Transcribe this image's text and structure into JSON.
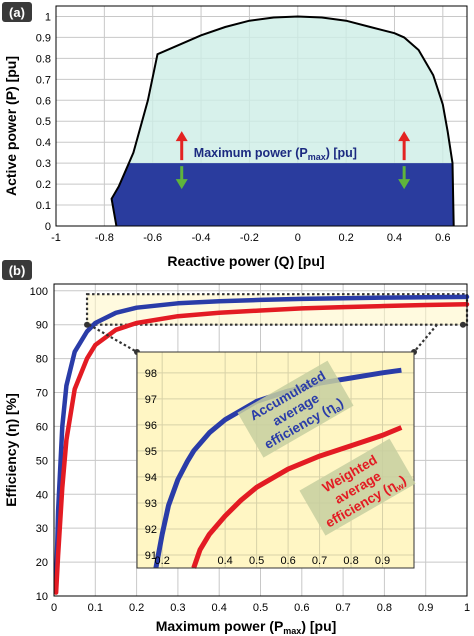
{
  "colors": {
    "fill_light": "#cdeee6",
    "fill_dark": "#2a3c9e",
    "grid": "#c8c8c8",
    "arrow_up": "#e32322",
    "arrow_down": "#5fb43c",
    "inset_bg": "#fff6c4",
    "accumulated": "#2a3ca8",
    "weighted": "#e31b23",
    "label_bg": "#c7cfa0",
    "panel_label_bg": "#3a3a3a"
  },
  "chart_data": [
    {
      "type": "area",
      "panel_label": "(a)",
      "xlabel": "Reactive power (Q) [pu]",
      "ylabel": "Active power (P) [pu]",
      "xlim": [
        -1,
        0.7
      ],
      "ylim": [
        0,
        1.05
      ],
      "xticks": [
        -1,
        -0.8,
        -0.6,
        -0.4,
        -0.2,
        0,
        0.2,
        0.4,
        0.6
      ],
      "xtick_labels": [
        "-1",
        "-0.8",
        "-0.6",
        "-0.4",
        "-0.2",
        "0",
        "0.2",
        "0.4",
        "0.6"
      ],
      "yticks": [
        0,
        0.1,
        0.2,
        0.3,
        0.4,
        0.5,
        0.6,
        0.7,
        0.8,
        0.9,
        1
      ],
      "ytick_labels": [
        "0",
        "0.1",
        "0.2",
        "0.3",
        "0.4",
        "0.5",
        "0.6",
        "0.7",
        "0.8",
        "0.9",
        "1"
      ],
      "grid": true,
      "capability_boundary": {
        "x": [
          -0.75,
          -0.77,
          -0.74,
          -0.68,
          -0.62,
          -0.58,
          -0.5,
          -0.4,
          -0.3,
          -0.2,
          -0.1,
          0,
          0.1,
          0.2,
          0.3,
          0.4,
          0.44,
          0.5,
          0.56,
          0.6,
          0.62,
          0.64,
          0.645
        ],
        "y": [
          0,
          0.13,
          0.19,
          0.35,
          0.6,
          0.82,
          0.86,
          0.91,
          0.95,
          0.98,
          0.995,
          1.0,
          0.995,
          0.98,
          0.95,
          0.92,
          0.9,
          0.84,
          0.72,
          0.58,
          0.45,
          0.3,
          0
        ]
      },
      "pmax": 0.3,
      "annotation": {
        "text": "Maximum power (P",
        "sub": "max",
        "suffix": ") [pu]",
        "arrow_x": [
          -0.48,
          0.44
        ]
      }
    },
    {
      "type": "line",
      "panel_label": "(b)",
      "xlabel": "Maximum power (P",
      "xlabel_sub": "max",
      "xlabel_suffix": ") [pu]",
      "ylabel": "Efficiency (η) [%]",
      "xlim": [
        0,
        1
      ],
      "ylim": [
        10,
        102
      ],
      "xticks": [
        0,
        0.1,
        0.2,
        0.3,
        0.4,
        0.5,
        0.6,
        0.7,
        0.8,
        0.9,
        1
      ],
      "xtick_labels": [
        "0",
        "0.1",
        "0.2",
        "0.3",
        "0.4",
        "0.5",
        "0.6",
        "0.7",
        "0.8",
        "0.9",
        "1"
      ],
      "yticks": [
        10,
        20,
        30,
        40,
        50,
        60,
        70,
        80,
        90,
        100
      ],
      "ytick_labels": [
        "10",
        "20",
        "30",
        "40",
        "50",
        "60",
        "70",
        "80",
        "90",
        "100"
      ],
      "grid": true,
      "series": [
        {
          "key": "accumulated",
          "x": [
            0.005,
            0.01,
            0.02,
            0.03,
            0.05,
            0.08,
            0.1,
            0.15,
            0.2,
            0.3,
            0.4,
            0.5,
            0.6,
            0.7,
            0.8,
            0.9,
            1.0
          ],
          "y": [
            12,
            35,
            60,
            72,
            82,
            88,
            90.5,
            93.5,
            95,
            96.3,
            96.9,
            97.3,
            97.6,
            97.8,
            98.0,
            98.1,
            98.2
          ]
        },
        {
          "key": "weighted",
          "x": [
            0.005,
            0.01,
            0.02,
            0.03,
            0.05,
            0.08,
            0.1,
            0.15,
            0.2,
            0.3,
            0.4,
            0.5,
            0.6,
            0.7,
            0.8,
            0.9,
            1.0
          ],
          "y": [
            11,
            22,
            42,
            56,
            71,
            80,
            84,
            88.5,
            90.5,
            92.5,
            93.5,
            94.2,
            94.8,
            95.2,
            95.5,
            95.8,
            96.0
          ]
        }
      ],
      "zoom_region": {
        "x": [
          0.08,
          1.0
        ],
        "y": [
          90,
          99
        ]
      },
      "inset": {
        "xlim": [
          0.12,
          1.0
        ],
        "ylim": [
          90.5,
          98.8
        ],
        "xticks": [
          0.2,
          0.4,
          0.5,
          0.6,
          0.7,
          0.8,
          0.9
        ],
        "xtick_labels": [
          "0.2",
          "0.4",
          "0.5",
          "0.6",
          "0.7",
          "0.8",
          "0.9"
        ],
        "yticks": [
          91,
          92,
          93,
          94,
          95,
          96,
          97,
          98
        ],
        "ytick_labels": [
          "91",
          "92",
          "93",
          "94",
          "95",
          "96",
          "97",
          "98"
        ],
        "series": [
          {
            "key": "accumulated",
            "x": [
              0.18,
              0.2,
              0.22,
              0.25,
              0.28,
              0.3,
              0.35,
              0.4,
              0.5,
              0.6,
              0.7,
              0.8,
              0.9,
              0.96
            ],
            "y": [
              90.5,
              91.8,
              92.9,
              93.9,
              94.6,
              95.0,
              95.7,
              96.2,
              96.9,
              97.3,
              97.6,
              97.8,
              98.0,
              98.1
            ]
          },
          {
            "key": "weighted",
            "x": [
              0.3,
              0.32,
              0.35,
              0.4,
              0.45,
              0.5,
              0.6,
              0.7,
              0.8,
              0.9,
              0.96
            ],
            "y": [
              90.5,
              91.2,
              91.8,
              92.5,
              93.1,
              93.6,
              94.3,
              94.8,
              95.2,
              95.6,
              95.9
            ]
          }
        ],
        "labels": [
          {
            "key": "accumulated",
            "lines": [
              "Accumulated",
              "average",
              "efficiency (η"
            ],
            "sub": "a",
            "suffix": ")"
          },
          {
            "key": "weighted",
            "lines": [
              "Weighted",
              "average",
              "efficiency (η"
            ],
            "sub": "w",
            "suffix": ")"
          }
        ]
      }
    }
  ]
}
